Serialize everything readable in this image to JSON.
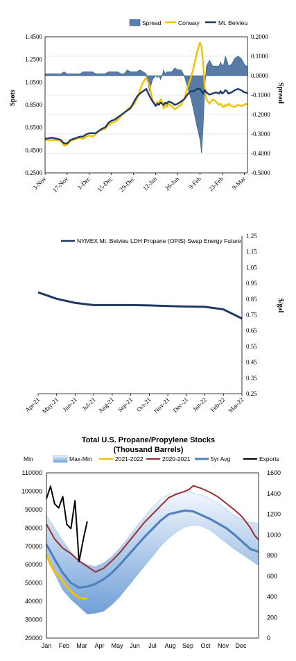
{
  "chart_data": [
    {
      "type": "line",
      "legend": [
        "Spread",
        "Conway",
        "Mt. Belvieu"
      ],
      "legend_position": "top",
      "ylabel": "Spots",
      "y2label": "Spread",
      "ylim": [
        0.25,
        1.45
      ],
      "y_ticks": [
        "0.2500",
        "0.4500",
        "0.6500",
        "0.8500",
        "1.0500",
        "1.2500",
        "1.4500"
      ],
      "y2lim": [
        -0.5,
        0.2
      ],
      "y2_ticks": [
        "-0.5000",
        "-0.4000",
        "-0.3000",
        "-0.2000",
        "-0.1000",
        "0.0000",
        "0.1000",
        "0.2000"
      ],
      "x_ticks": [
        "3-Nov",
        "17-Nov",
        "1-Dec",
        "15-Dec",
        "29-Dec",
        "12-Jan",
        "26-Jan",
        "9-Feb",
        "23-Feb",
        "9-Mar"
      ],
      "x": [
        0,
        4,
        8,
        10,
        12,
        14,
        16,
        18,
        20,
        22,
        24,
        26,
        28,
        30,
        32,
        34,
        36,
        38,
        40,
        42,
        44,
        46,
        48,
        50,
        52,
        54,
        56,
        58,
        60,
        62,
        64,
        66,
        68,
        70,
        71,
        72,
        73,
        74,
        75,
        76,
        77,
        78,
        80,
        82,
        84,
        86,
        88,
        90,
        92,
        94,
        96,
        98,
        99,
        100,
        101,
        102,
        104,
        106,
        108,
        110,
        111,
        112,
        113,
        114,
        115,
        116,
        118,
        120,
        122,
        124,
        126,
        127,
        128
      ],
      "series": [
        {
          "name": "Conway",
          "values": [
            0.54,
            0.54,
            0.54,
            0.53,
            0.49,
            0.5,
            0.53,
            0.54,
            0.55,
            0.56,
            0.55,
            0.57,
            0.58,
            0.57,
            0.59,
            0.62,
            0.63,
            0.64,
            0.67,
            0.69,
            0.7,
            0.72,
            0.75,
            0.78,
            0.81,
            0.83,
            0.85,
            0.9,
            0.98,
            1.05,
            1.09,
            1.02,
            0.89,
            0.85,
            0.88,
            0.86,
            0.9,
            0.88,
            0.82,
            0.85,
            0.83,
            0.86,
            0.84,
            0.81,
            0.83,
            0.85,
            0.9,
            1.0,
            1.08,
            1.18,
            1.31,
            1.4,
            1.36,
            1.2,
            1.0,
            0.9,
            0.86,
            0.9,
            0.88,
            0.85,
            0.86,
            0.84,
            0.83,
            0.85,
            0.84,
            0.86,
            0.84,
            0.83,
            0.85,
            0.84,
            0.85,
            0.86,
            0.85
          ]
        },
        {
          "name": "Mt. Belvieu",
          "values": [
            0.55,
            0.56,
            0.55,
            0.54,
            0.51,
            0.51,
            0.54,
            0.55,
            0.56,
            0.57,
            0.57,
            0.59,
            0.6,
            0.6,
            0.6,
            0.62,
            0.64,
            0.65,
            0.69,
            0.71,
            0.72,
            0.74,
            0.76,
            0.78,
            0.8,
            0.82,
            0.87,
            0.92,
            0.95,
            0.97,
            0.99,
            0.93,
            0.88,
            0.84,
            0.86,
            0.85,
            0.87,
            0.86,
            0.85,
            0.87,
            0.86,
            0.88,
            0.87,
            0.85,
            0.86,
            0.88,
            0.9,
            0.94,
            0.97,
            0.97,
            0.99,
            0.99,
            0.97,
            0.95,
            0.98,
            0.96,
            0.94,
            0.95,
            0.96,
            0.95,
            0.97,
            0.95,
            0.96,
            0.98,
            0.97,
            0.95,
            0.96,
            0.98,
            0.99,
            0.98,
            0.96,
            0.96,
            0.95
          ]
        },
        {
          "name": "Spread",
          "values": [
            0.01,
            0.01,
            0.01,
            0.01,
            0.02,
            0.01,
            0.01,
            0.01,
            0.01,
            0.01,
            0.02,
            0.02,
            0.02,
            0.02,
            0.01,
            0.01,
            0.01,
            0.01,
            0.02,
            0.02,
            0.02,
            0.02,
            0.01,
            0.01,
            0.03,
            0.02,
            0.02,
            0.02,
            0.03,
            0.02,
            0.01,
            -0.08,
            -0.02,
            0.0,
            -0.01,
            0.0,
            -0.02,
            0.0,
            0.03,
            0.01,
            0.02,
            0.02,
            0.02,
            0.04,
            0.03,
            0.03,
            0.0,
            -0.06,
            -0.11,
            -0.18,
            -0.26,
            -0.33,
            -0.4,
            -0.26,
            -0.06,
            0.05,
            0.08,
            0.05,
            0.05,
            0.05,
            0.07,
            0.05,
            0.06,
            0.1,
            0.08,
            0.05,
            0.06,
            0.09,
            0.1,
            0.09,
            0.06,
            0.05,
            0.05
          ]
        }
      ]
    },
    {
      "type": "line",
      "legend": [
        "NYMEX Mt. Belvieu LDH Propane (OPIS) Swap Energy Future"
      ],
      "legend_position": "top",
      "y2label": "$/gal",
      "ylim": [
        0.25,
        1.25
      ],
      "y_ticks": [
        "0.25",
        "0.35",
        "0.45",
        "0.55",
        "0.65",
        "0.75",
        "0.85",
        "0.95",
        "1.05",
        "1.15",
        "1.25"
      ],
      "x_ticks": [
        "Apr-21",
        "May-21",
        "Jun-21",
        "Jul-21",
        "Aug-21",
        "Sep-21",
        "Oct-21",
        "Nov-21",
        "Dec-21",
        "Jan-22",
        "Feb-22",
        "Mar-22"
      ],
      "series": [
        {
          "name": "NYMEX Mt. Belvieu LDH Propane (OPIS) Swap Energy Future",
          "values": [
            0.893,
            0.852,
            0.826,
            0.812,
            0.812,
            0.812,
            0.81,
            0.806,
            0.803,
            0.801,
            0.785,
            0.727
          ]
        }
      ]
    },
    {
      "type": "line",
      "title": "Total U.S. Propane/Propylene Stocks",
      "subtitle": "(Thousand Barrels)",
      "legend": [
        "Min",
        "Max-Min",
        "2021-2022",
        "2020-2021",
        "5yr Avg",
        "Exports"
      ],
      "legend_position": "top",
      "ylim": [
        20000,
        110000
      ],
      "y_ticks": [
        "20000",
        "30000",
        "40000",
        "50000",
        "60000",
        "70000",
        "80000",
        "90000",
        "100000",
        "110000"
      ],
      "y2lim": [
        0,
        1600
      ],
      "y2_ticks": [
        "0",
        "200",
        "400",
        "600",
        "800",
        "1000",
        "1200",
        "1400",
        "1600"
      ],
      "x_ticks": [
        "Jan",
        "Feb",
        "Mar",
        "Apr",
        "May",
        "Jun",
        "Jul",
        "Aug",
        "Sep",
        "Oct",
        "Nov",
        "Dec"
      ],
      "weeks": [
        0,
        2,
        4,
        6,
        8,
        10,
        12,
        14,
        16,
        18,
        20,
        22,
        24,
        26,
        28,
        30,
        32,
        34,
        36,
        38,
        40,
        42,
        44,
        46,
        48,
        50,
        52
      ],
      "min": [
        64000,
        55000,
        46000,
        41000,
        37000,
        33000,
        33500,
        34500,
        38000,
        42500,
        48000,
        53500,
        59000,
        64500,
        70000,
        74500,
        78000,
        80500,
        81500,
        81000,
        79000,
        75500,
        72000,
        68500,
        65500,
        62500,
        59500
      ],
      "max": [
        87000,
        80000,
        73000,
        67000,
        62000,
        60000,
        59000,
        61000,
        64500,
        69000,
        74500,
        80500,
        86000,
        91000,
        95500,
        98500,
        99000,
        99500,
        99000,
        98000,
        96000,
        93500,
        90500,
        87000,
        84500,
        83000,
        82500
      ],
      "avg_5yr": [
        71000,
        63000,
        55500,
        50000,
        47500,
        48000,
        49500,
        52000,
        55500,
        60000,
        65000,
        70000,
        75000,
        79500,
        84000,
        87500,
        88500,
        89500,
        89000,
        87000,
        85000,
        82500,
        80000,
        76500,
        72500,
        68500,
        67000
      ],
      "series": [
        {
          "name": "2021-2022",
          "x": [
            0,
            1,
            2,
            3,
            4,
            5,
            6,
            7,
            8,
            9,
            10
          ],
          "values": [
            65500,
            60000,
            56000,
            54000,
            51000,
            48000,
            45500,
            43500,
            42000,
            41500,
            41500
          ]
        },
        {
          "name": "2020-2021",
          "x": [
            0,
            2,
            4,
            6,
            8,
            10,
            12,
            14,
            16,
            18,
            20,
            22,
            24,
            26,
            28,
            30,
            32,
            34,
            35,
            36,
            38,
            40,
            42,
            44,
            46,
            48,
            50,
            51,
            52
          ],
          "values": [
            82000,
            74000,
            69000,
            66000,
            62000,
            59000,
            56000,
            58000,
            62000,
            66500,
            72000,
            77500,
            83000,
            87500,
            92000,
            96500,
            98500,
            100000,
            101000,
            103000,
            101500,
            99500,
            97000,
            93500,
            90000,
            86000,
            80000,
            76000,
            73500
          ]
        },
        {
          "name": "Exports",
          "x": [
            0,
            1,
            2,
            3,
            4,
            5,
            6,
            7,
            8,
            9,
            10
          ],
          "values": [
            1350,
            1470,
            1300,
            1260,
            1370,
            1100,
            1060,
            1330,
            740,
            950,
            1130
          ]
        }
      ]
    }
  ]
}
